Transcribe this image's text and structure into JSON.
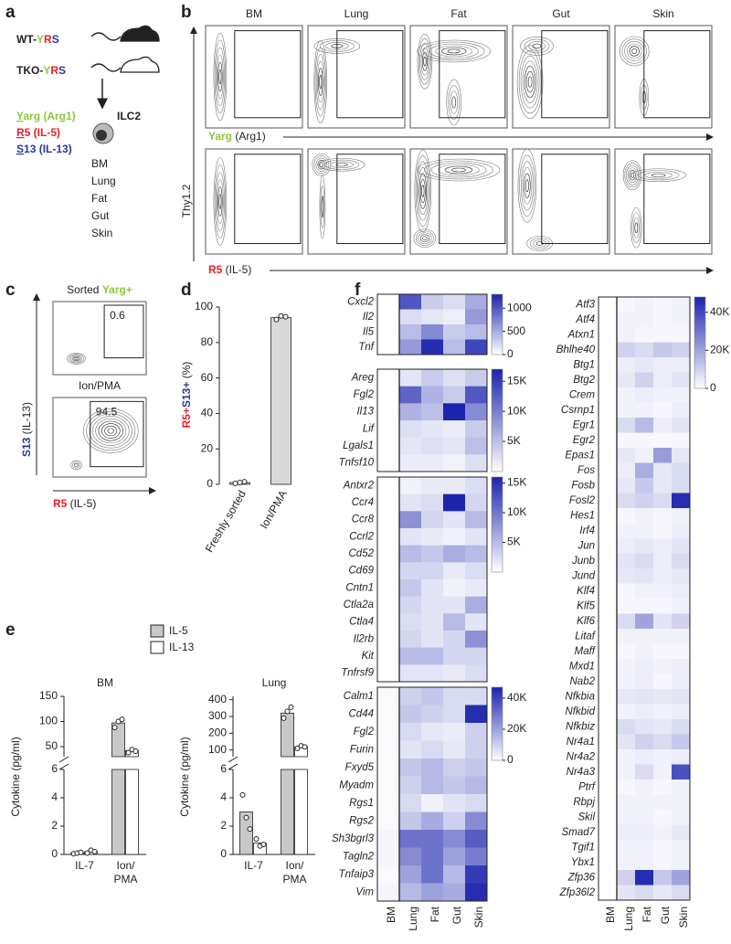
{
  "panel_labels": [
    "a",
    "b",
    "c",
    "d",
    "e",
    "f"
  ],
  "panel_a": {
    "wt": [
      "WT-",
      "Y",
      "R",
      "S"
    ],
    "tko": [
      "TKO-",
      "Y",
      "R",
      "S"
    ],
    "reporters": [
      [
        "Y",
        "arg (Arg1)"
      ],
      [
        "R",
        "5 (IL-5)"
      ],
      [
        "S",
        "13 (IL-13)"
      ]
    ],
    "cell": "ILC2",
    "tissues": [
      "BM",
      "Lung",
      "Fat",
      "Gut",
      "Skin"
    ]
  },
  "panel_b": {
    "tissues": [
      "BM",
      "Lung",
      "Fat",
      "Gut",
      "Skin"
    ],
    "y_label": "Thy1.2",
    "x_label_row1": [
      "Yarg",
      " (Arg1)"
    ],
    "x_label_row2": [
      "R5",
      " (IL-5)"
    ]
  },
  "panel_c": {
    "titles": [
      [
        "Sorted ",
        "Yarg+"
      ],
      [
        "Ion/PMA"
      ]
    ],
    "gates": [
      0.6,
      94.5
    ],
    "y_label": [
      "S13",
      " (IL-13)"
    ],
    "x_label": [
      "R5",
      " (IL-5)"
    ]
  },
  "chart_data": [
    {
      "type": "bar",
      "y_label": [
        "R5+",
        "S13+",
        " (%)"
      ],
      "categories": [
        "Freshly sorted",
        "Ion/PMA"
      ],
      "values": [
        1,
        94
      ],
      "points": [
        [
          0.5,
          1,
          1.5
        ],
        [
          93,
          95,
          94.5
        ]
      ],
      "color": "#d9d9d9",
      "ylim": [
        0,
        100
      ],
      "yticks": [
        0,
        20,
        40,
        60,
        80,
        100
      ]
    },
    {
      "type": "broken-bar",
      "title": "BM",
      "y_label": "Cytokine (pg/ml)",
      "categories": [
        [
          "IL-7"
        ],
        [
          "Ion/",
          "PMA"
        ]
      ],
      "series": [
        {
          "name": "IL-5",
          "color": "#c8c8c8",
          "values": [
            0.1,
            97
          ],
          "points": [
            [
              0.05,
              0.1,
              0.15
            ],
            [
              88,
              100,
              104
            ]
          ]
        },
        {
          "name": "IL-13",
          "color": "#ffffff",
          "values": [
            0.2,
            42
          ],
          "points": [
            [
              0.1,
              0.3,
              0.2
            ],
            [
              38,
              44,
              41
            ]
          ]
        }
      ],
      "ylim_lower": [
        0,
        6
      ],
      "yticks_lower": [
        0,
        2,
        4,
        6
      ],
      "ylim_upper": [
        30,
        150
      ],
      "yticks_upper": [
        50,
        100,
        150
      ]
    },
    {
      "type": "broken-bar",
      "title": "Lung",
      "y_label": "Cytokine (pg/ml)",
      "categories": [
        [
          "IL-7"
        ],
        [
          "Ion/",
          "PMA"
        ]
      ],
      "series": [
        {
          "color": "#c8c8c8",
          "values": [
            3,
            320
          ],
          "points": [
            [
              4.2,
              2.6,
              1.8
            ],
            [
              290,
              330,
              355
            ]
          ]
        },
        {
          "color": "#ffffff",
          "values": [
            0.8,
            118
          ],
          "points": [
            [
              1.1,
              0.6,
              0.7
            ],
            [
              110,
              125,
              118
            ]
          ]
        }
      ],
      "ylim_lower": [
        0,
        6
      ],
      "yticks_lower": [
        0,
        2,
        4,
        6
      ],
      "ylim_upper": [
        60,
        420
      ],
      "yticks_upper": [
        100,
        200,
        300,
        400
      ]
    },
    {
      "type": "heatmap",
      "colormap": [
        "#ffffff",
        "#1b24ad"
      ],
      "zlim": [
        0,
        1300
      ],
      "zticks": [
        0,
        500,
        1000
      ],
      "rows": [
        "Cxcl2",
        "Il2",
        "Il5",
        "Tnf"
      ],
      "values": [
        [
          0,
          1000,
          300,
          200,
          500
        ],
        [
          0,
          200,
          150,
          100,
          600
        ],
        [
          0,
          400,
          700,
          300,
          400
        ],
        [
          0,
          600,
          1250,
          400,
          1100
        ]
      ]
    },
    {
      "type": "heatmap",
      "colormap": [
        "#ffffff",
        "#1b24ad"
      ],
      "zlim": [
        0,
        17000
      ],
      "zticks": [
        {
          "value": 5000,
          "label": "5K"
        },
        {
          "value": 10000,
          "label": "10K"
        },
        {
          "value": 15000,
          "label": "15K"
        }
      ],
      "rows": [
        "Areg",
        "Fgl2",
        "Il13",
        "Lif",
        "Lgals1",
        "Tnfsf10"
      ],
      "values": [
        [
          0,
          2000,
          4000,
          2500,
          4000
        ],
        [
          0,
          12000,
          6000,
          4000,
          13000
        ],
        [
          0,
          6000,
          5000,
          17000,
          9000
        ],
        [
          0,
          2500,
          2000,
          1500,
          4000
        ],
        [
          0,
          2000,
          2500,
          2000,
          5000
        ],
        [
          0,
          1500,
          1500,
          1000,
          2500
        ]
      ]
    },
    {
      "type": "heatmap",
      "colormap": [
        "#ffffff",
        "#1b24ad"
      ],
      "zlim": [
        0,
        16000
      ],
      "zticks": [
        {
          "value": 5000,
          "label": "5K"
        },
        {
          "value": 10000,
          "label": "10K"
        },
        {
          "value": 15000,
          "label": "15K"
        }
      ],
      "rows": [
        "Antxr2",
        "Ccr4",
        "Ccr8",
        "Ccrl2",
        "Cd52",
        "Cd69",
        "Cntn1",
        "Ctla2a",
        "Ctla4",
        "Il2rb",
        "Kit",
        "Tnfrsf9"
      ],
      "values": [
        [
          0,
          1000,
          1500,
          1500,
          2500
        ],
        [
          0,
          2000,
          2500,
          16000,
          3000
        ],
        [
          0,
          8000,
          3000,
          2000,
          5000
        ],
        [
          0,
          2000,
          1500,
          1000,
          2000
        ],
        [
          0,
          5000,
          4000,
          6000,
          5000
        ],
        [
          0,
          3000,
          3000,
          1500,
          2500
        ],
        [
          0,
          4000,
          2000,
          1000,
          1500
        ],
        [
          0,
          3000,
          2000,
          2000,
          6000
        ],
        [
          0,
          2500,
          2000,
          5000,
          2000
        ],
        [
          0,
          3000,
          2000,
          3000,
          8000
        ],
        [
          0,
          5000,
          5000,
          3000,
          3000
        ],
        [
          0,
          2000,
          2000,
          1500,
          2500
        ]
      ]
    },
    {
      "type": "heatmap",
      "colormap": [
        "#ffffff",
        "#1b24ad"
      ],
      "zlim": [
        0,
        47000
      ],
      "zticks": [
        0,
        {
          "value": 20000,
          "label": "20K"
        },
        {
          "value": 40000,
          "label": "40K"
        }
      ],
      "rows": [
        "Calm1",
        "Cd44",
        "Fgl2",
        "Furin",
        "Fxyd5",
        "Myadm",
        "Rgs1",
        "Rgs2",
        "Sh3bgrl3",
        "Tagln2",
        "Tnfaip3",
        "Vim"
      ],
      "columns": [
        "BM",
        "Lung",
        "Fat",
        "Gut",
        "Skin"
      ],
      "values": [
        [
          1000,
          10000,
          12000,
          8000,
          8000
        ],
        [
          1000,
          12000,
          10000,
          8000,
          45000
        ],
        [
          1000,
          8000,
          5000,
          4000,
          10000
        ],
        [
          1000,
          6000,
          8000,
          5000,
          10000
        ],
        [
          1000,
          12000,
          15000,
          10000,
          12000
        ],
        [
          1000,
          10000,
          15000,
          12000,
          15000
        ],
        [
          1000,
          8000,
          3000,
          6000,
          8000
        ],
        [
          1000,
          12000,
          18000,
          10000,
          25000
        ],
        [
          2000,
          30000,
          30000,
          25000,
          35000
        ],
        [
          2000,
          25000,
          30000,
          20000,
          28000
        ],
        [
          1000,
          20000,
          30000,
          15000,
          42000
        ],
        [
          2000,
          15000,
          20000,
          18000,
          45000
        ]
      ]
    },
    {
      "type": "heatmap",
      "colormap": [
        "#ffffff",
        "#1b24ad"
      ],
      "zlim": [
        0,
        48000
      ],
      "zticks": [
        0,
        {
          "value": 20000,
          "label": "20K"
        },
        {
          "value": 40000,
          "label": "40K"
        }
      ],
      "rows": [
        "Atf3",
        "Atf4",
        "Atxn1",
        "Bhlhe40",
        "Btg1",
        "Btg2",
        "Crem",
        "Csrnp1",
        "Egr1",
        "Egr2",
        "Epas1",
        "Fos",
        "Fosb",
        "Fosl2",
        "Hes1",
        "Irf4",
        "Jun",
        "Junb",
        "Jund",
        "Klf4",
        "Klf5",
        "Klf6",
        "Litaf",
        "Maff",
        "Mxd1",
        "Nab2",
        "Nfkbia",
        "Nfkbid",
        "Nfkbiz",
        "Nr4a1",
        "Nr4a2",
        "Nr4a3",
        "Ptrf",
        "Rbpj",
        "Skil",
        "Smad7",
        "Tgif1",
        "Ybx1",
        "Zfp36",
        "Zfp36l2"
      ],
      "columns": [
        "BM",
        "Lung",
        "Fat",
        "Gut",
        "Skin"
      ],
      "values": [
        [
          0,
          2000,
          3000,
          2000,
          3000
        ],
        [
          0,
          3000,
          3000,
          2000,
          3000
        ],
        [
          0,
          3000,
          2000,
          2000,
          2000
        ],
        [
          0,
          10000,
          8000,
          12000,
          10000
        ],
        [
          0,
          4000,
          5000,
          4000,
          4000
        ],
        [
          0,
          5000,
          10000,
          4000,
          6000
        ],
        [
          0,
          3000,
          4000,
          3000,
          3000
        ],
        [
          0,
          3000,
          3000,
          2000,
          4000
        ],
        [
          0,
          8000,
          15000,
          4000,
          6000
        ],
        [
          0,
          2000,
          2000,
          1500,
          2000
        ],
        [
          0,
          5000,
          3000,
          22000,
          5000
        ],
        [
          0,
          4000,
          18000,
          5000,
          8000
        ],
        [
          0,
          5000,
          12000,
          5000,
          8000
        ],
        [
          0,
          8000,
          10000,
          8000,
          46000
        ],
        [
          0,
          2000,
          3000,
          2000,
          3000
        ],
        [
          0,
          3000,
          3000,
          2000,
          4000
        ],
        [
          0,
          4000,
          5000,
          4000,
          6000
        ],
        [
          0,
          6000,
          8000,
          4000,
          8000
        ],
        [
          0,
          5000,
          6000,
          4000,
          5000
        ],
        [
          0,
          2000,
          3000,
          3000,
          4000
        ],
        [
          0,
          2000,
          2000,
          2000,
          3000
        ],
        [
          0,
          8000,
          20000,
          6000,
          10000
        ],
        [
          0,
          3000,
          3000,
          3000,
          3000
        ],
        [
          0,
          2000,
          3000,
          2000,
          2000
        ],
        [
          0,
          3000,
          4000,
          3000,
          4000
        ],
        [
          0,
          3000,
          4000,
          2000,
          4000
        ],
        [
          0,
          5000,
          6000,
          5000,
          6000
        ],
        [
          0,
          3000,
          4000,
          3000,
          4000
        ],
        [
          0,
          8000,
          6000,
          5000,
          8000
        ],
        [
          0,
          6000,
          10000,
          8000,
          12000
        ],
        [
          0,
          3000,
          4000,
          3000,
          4000
        ],
        [
          0,
          3000,
          8000,
          3000,
          38000
        ],
        [
          0,
          2000,
          3000,
          2000,
          3000
        ],
        [
          0,
          3000,
          3000,
          3000,
          3000
        ],
        [
          0,
          3000,
          3000,
          2000,
          3000
        ],
        [
          0,
          4000,
          4000,
          3000,
          5000
        ],
        [
          0,
          3000,
          3000,
          2000,
          3000
        ],
        [
          0,
          3000,
          3000,
          2000,
          3000
        ],
        [
          0,
          10000,
          46000,
          12000,
          20000
        ],
        [
          0,
          6000,
          8000,
          5000,
          8000
        ]
      ]
    }
  ]
}
